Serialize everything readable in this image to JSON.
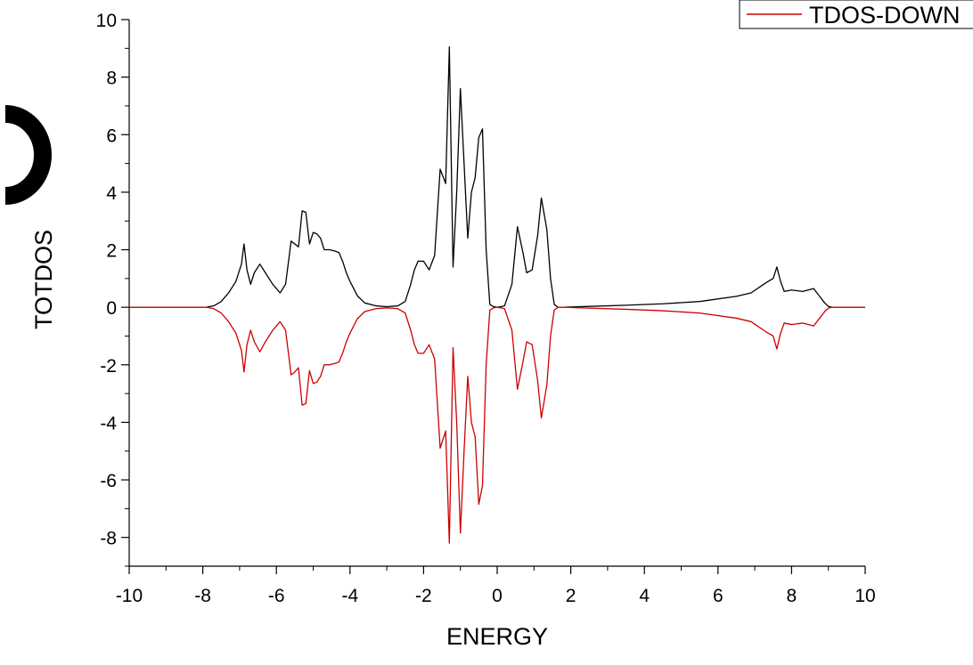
{
  "chart_data": {
    "type": "line",
    "xlabel": "ENERGY",
    "ylabel": "TOTDOS",
    "xlim": [
      -10,
      10
    ],
    "ylim": [
      -9,
      10
    ],
    "xticks": [
      -10,
      -8,
      -6,
      -4,
      -2,
      0,
      2,
      4,
      6,
      8,
      10
    ],
    "yticks": [
      10,
      8,
      6,
      4,
      2,
      0,
      -2,
      -4,
      -6,
      -8
    ],
    "grid": false,
    "legend_position": "top-right",
    "legend": [
      "TDOS-DOWN"
    ],
    "colors": {
      "up": "#000000",
      "down": "#cc0000"
    },
    "series": [
      {
        "x": [
          -10,
          -7.9,
          -7.7,
          -7.5,
          -7.3,
          -7.1,
          -6.95,
          -6.88,
          -6.8,
          -6.7,
          -6.6,
          -6.45,
          -6.3,
          -6.1,
          -5.9,
          -5.75,
          -5.6,
          -5.5,
          -5.4,
          -5.3,
          -5.2,
          -5.1,
          -5.0,
          -4.9,
          -4.8,
          -4.7,
          -4.55,
          -4.4,
          -4.3,
          -4.2,
          -4.1,
          -4.0,
          -3.8,
          -3.6,
          -3.3,
          -3.0,
          -2.7,
          -2.5,
          -2.35,
          -2.25,
          -2.15,
          -2.0,
          -1.85,
          -1.7,
          -1.55,
          -1.4,
          -1.3,
          -1.2,
          -1.1,
          -1.0,
          -0.9,
          -0.8,
          -0.7,
          -0.6,
          -0.5,
          -0.4,
          -0.3,
          -0.2,
          -0.1,
          0.0,
          0.1,
          0.2,
          0.4,
          0.55,
          0.7,
          0.8,
          0.95,
          1.1,
          1.2,
          1.35,
          1.45,
          1.55,
          1.65,
          1.8,
          2.5,
          3.5,
          4.5,
          5.5,
          6.5,
          6.9,
          7.3,
          7.5,
          7.6,
          7.7,
          7.8,
          8.0,
          8.3,
          8.6,
          8.75,
          8.9,
          9.0,
          9.1,
          10.0
        ],
        "y": [
          0,
          0,
          0.05,
          0.2,
          0.5,
          0.9,
          1.5,
          2.2,
          1.3,
          0.8,
          1.2,
          1.5,
          1.2,
          0.8,
          0.5,
          0.8,
          2.3,
          2.2,
          2.1,
          3.35,
          3.3,
          2.2,
          2.6,
          2.55,
          2.4,
          2.0,
          2.0,
          1.95,
          1.9,
          1.6,
          1.2,
          0.9,
          0.4,
          0.15,
          0.05,
          0.02,
          0.05,
          0.2,
          0.8,
          1.3,
          1.6,
          1.6,
          1.3,
          1.8,
          4.8,
          4.3,
          9.05,
          1.4,
          4.0,
          7.6,
          5.0,
          2.4,
          4.0,
          4.5,
          5.9,
          6.2,
          2.0,
          0.1,
          0.02,
          0,
          0.02,
          0.05,
          0.8,
          2.8,
          1.9,
          1.2,
          1.3,
          2.5,
          3.8,
          2.7,
          1.0,
          0.1,
          0,
          0,
          0.03,
          0.07,
          0.12,
          0.2,
          0.38,
          0.5,
          0.85,
          1.0,
          1.4,
          0.9,
          0.55,
          0.6,
          0.55,
          0.65,
          0.4,
          0.15,
          0.03,
          0,
          0
        ]
      },
      {
        "name": "TDOS-DOWN",
        "x": [
          -10,
          -7.9,
          -7.7,
          -7.5,
          -7.3,
          -7.1,
          -6.95,
          -6.88,
          -6.8,
          -6.7,
          -6.6,
          -6.45,
          -6.3,
          -6.1,
          -5.9,
          -5.75,
          -5.6,
          -5.5,
          -5.4,
          -5.3,
          -5.2,
          -5.1,
          -5.0,
          -4.9,
          -4.8,
          -4.7,
          -4.55,
          -4.4,
          -4.3,
          -4.2,
          -4.1,
          -4.0,
          -3.8,
          -3.6,
          -3.3,
          -3.0,
          -2.7,
          -2.5,
          -2.35,
          -2.25,
          -2.15,
          -2.0,
          -1.85,
          -1.7,
          -1.55,
          -1.4,
          -1.3,
          -1.2,
          -1.1,
          -1.0,
          -0.9,
          -0.8,
          -0.7,
          -0.6,
          -0.5,
          -0.4,
          -0.3,
          -0.2,
          -0.1,
          0.0,
          0.1,
          0.2,
          0.4,
          0.55,
          0.7,
          0.8,
          0.95,
          1.1,
          1.2,
          1.35,
          1.45,
          1.55,
          1.65,
          1.8,
          2.5,
          3.5,
          4.5,
          5.5,
          6.5,
          6.9,
          7.3,
          7.5,
          7.6,
          7.7,
          7.8,
          8.0,
          8.3,
          8.6,
          8.75,
          8.9,
          9.0,
          9.1,
          10.0
        ],
        "y": [
          0,
          0,
          -0.05,
          -0.2,
          -0.5,
          -0.9,
          -1.5,
          -2.25,
          -1.3,
          -0.8,
          -1.2,
          -1.55,
          -1.2,
          -0.8,
          -0.5,
          -0.8,
          -2.35,
          -2.25,
          -2.1,
          -3.4,
          -3.35,
          -2.2,
          -2.65,
          -2.6,
          -2.4,
          -2.0,
          -2.0,
          -1.95,
          -1.9,
          -1.6,
          -1.2,
          -0.9,
          -0.4,
          -0.15,
          -0.05,
          -0.02,
          -0.05,
          -0.2,
          -0.8,
          -1.3,
          -1.6,
          -1.6,
          -1.3,
          -1.8,
          -4.9,
          -4.3,
          -8.2,
          -1.4,
          -4.0,
          -7.85,
          -5.0,
          -2.4,
          -4.0,
          -4.5,
          -6.85,
          -6.2,
          -2.0,
          -0.1,
          -0.02,
          0,
          -0.02,
          -0.05,
          -0.8,
          -2.85,
          -1.9,
          -1.2,
          -1.3,
          -2.55,
          -3.85,
          -2.7,
          -1.0,
          -0.1,
          0,
          0,
          -0.03,
          -0.07,
          -0.12,
          -0.2,
          -0.38,
          -0.5,
          -0.85,
          -1.0,
          -1.45,
          -0.9,
          -0.55,
          -0.6,
          -0.55,
          -0.65,
          -0.4,
          -0.15,
          -0.03,
          0,
          0
        ]
      }
    ]
  }
}
